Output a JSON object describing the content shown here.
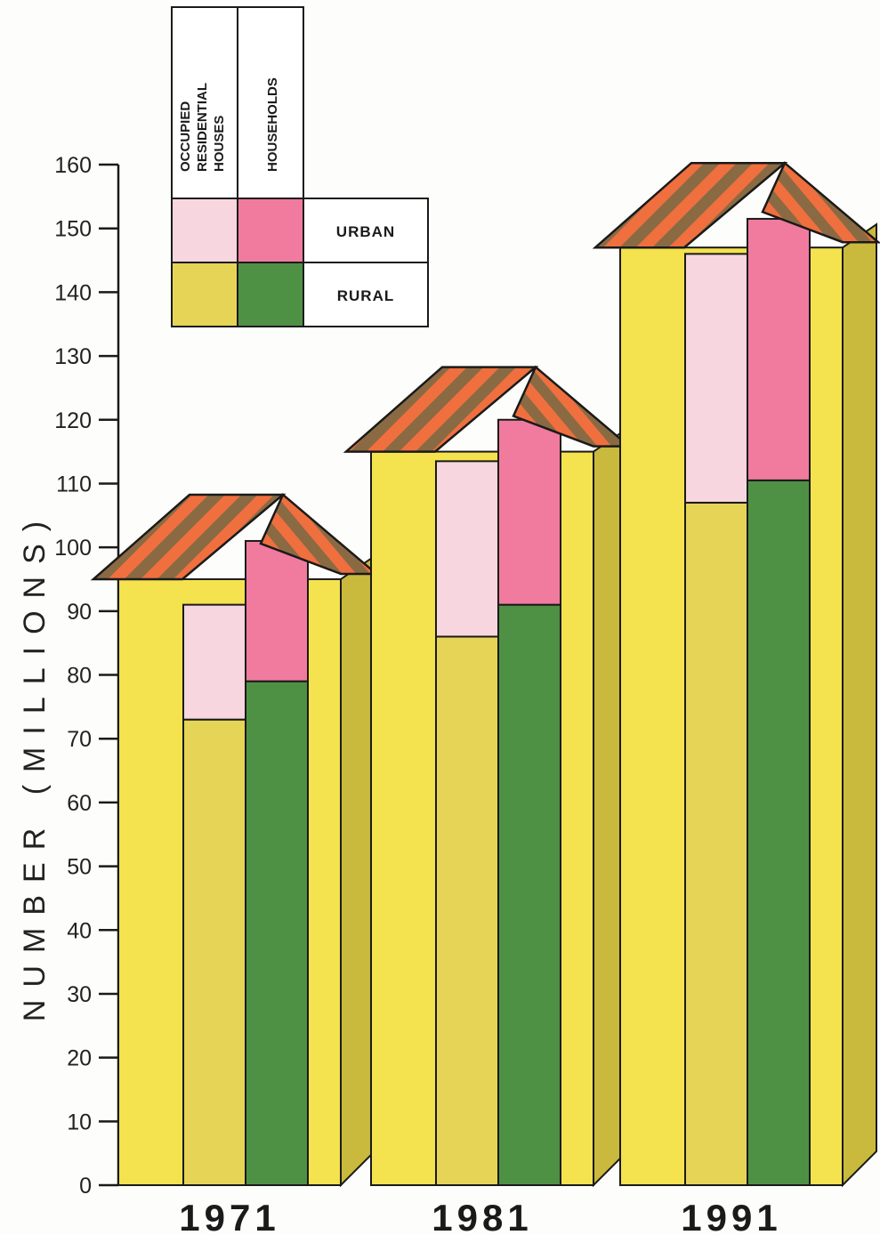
{
  "chart_data": {
    "type": "bar",
    "ylabel": "NUMBER (MILLIONS)",
    "ylim": [
      0,
      160
    ],
    "yticks": [
      "0",
      "10",
      "20",
      "30",
      "40",
      "50",
      "60",
      "70",
      "80",
      "90",
      "100",
      "110",
      "120",
      "130",
      "140",
      "150",
      "160"
    ],
    "categories": [
      "1971",
      "1981",
      "1991"
    ],
    "legend": {
      "columns": [
        "OCCUPIED RESIDENTIAL HOUSES",
        "HOUSEHOLDS"
      ],
      "rows": [
        "URBAN",
        "RURAL"
      ],
      "placement": "top-left"
    },
    "series": [
      {
        "name": "OCCUPIED RESIDENTIAL HOUSES RURAL",
        "values": [
          73,
          86,
          107
        ]
      },
      {
        "name": "OCCUPIED RESIDENTIAL HOUSES URBAN",
        "values": [
          18,
          27.5,
          39
        ]
      },
      {
        "name": "HOUSEHOLDS RURAL",
        "values": [
          79,
          91,
          110.5
        ]
      },
      {
        "name": "HOUSEHOLDS URBAN",
        "values": [
          22,
          29,
          41
        ]
      }
    ],
    "house_totals": [
      95,
      115,
      147
    ],
    "colors": {
      "house_body": "#f4e24e",
      "house_shadow": "#c9b93c",
      "occupied_rural": "#e6d456",
      "occupied_urban": "#f8d6df",
      "households_rural": "#4f9144",
      "households_urban": "#f07b9e",
      "roof_stripe_a": "#f06f3e",
      "roof_stripe_b": "#8a6a43",
      "outline": "#1a1a1a"
    }
  }
}
